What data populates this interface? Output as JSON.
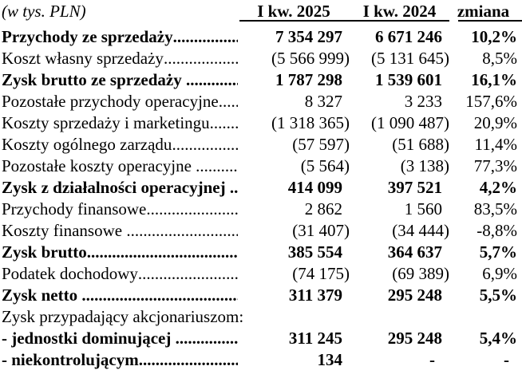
{
  "page": {
    "background": "#ffffff",
    "text_color": "#000000",
    "rule_color": "#000000"
  },
  "table": {
    "unit_label": "(w tys. PLN)",
    "columns": [
      "I kw. 2025",
      "I kw. 2024",
      "zmiana"
    ],
    "rows": [
      {
        "label": "Przychody ze sprzedaży",
        "bold": true,
        "dots": true,
        "v2025": "7 354 297",
        "v2024": "6 671 246",
        "change": "10,2%"
      },
      {
        "label": "Koszt własny sprzedaży",
        "bold": false,
        "dots": true,
        "v2025": "(5 566 999)",
        "v2024": "(5 131 645)",
        "change": "8,5%"
      },
      {
        "label": "Zysk brutto ze sprzedaży ",
        "bold": true,
        "dots": true,
        "v2025": "1 787 298",
        "v2024": "1 539 601",
        "change": "16,1%"
      },
      {
        "label": "Pozostałe przychody operacyjne",
        "bold": false,
        "dots": true,
        "v2025": "8 327",
        "v2024": "3 233",
        "change": "157,6%"
      },
      {
        "label": "Koszty sprzedaży i marketingu",
        "bold": false,
        "dots": true,
        "v2025": "(1 318 365)",
        "v2024": "(1 090 487)",
        "change": "20,9%"
      },
      {
        "label": "Koszty ogólnego zarządu",
        "bold": false,
        "dots": true,
        "v2025": "(57 597)",
        "v2024": "(51 688)",
        "change": "11,4%"
      },
      {
        "label": "Pozostałe koszty operacyjne ",
        "bold": false,
        "dots": true,
        "v2025": "(5 564)",
        "v2024": "(3 138)",
        "change": "77,3%"
      },
      {
        "label": "Zysk z działalności operacyjnej ",
        "bold": true,
        "dots": true,
        "v2025": "414 099",
        "v2024": "397 521",
        "change": "4,2%"
      },
      {
        "label": "Przychody finansowe",
        "bold": false,
        "dots": true,
        "v2025": "2 862",
        "v2024": "1 560",
        "change": "83,5%"
      },
      {
        "label": "Koszty finansowe ",
        "bold": false,
        "dots": true,
        "v2025": "(31 407)",
        "v2024": "(34 444)",
        "change": "-8,8%"
      },
      {
        "label": "Zysk brutto",
        "bold": true,
        "dots": true,
        "v2025": "385 554",
        "v2024": "364 637",
        "change": "5,7%"
      },
      {
        "label": "Podatek dochodowy",
        "bold": false,
        "dots": true,
        "v2025": "(74 175)",
        "v2024": "(69 389)",
        "change": "6,9%"
      },
      {
        "label": "Zysk netto ",
        "bold": true,
        "dots": true,
        "v2025": "311 379",
        "v2024": "295 248",
        "change": "5,5%"
      },
      {
        "label": "Zysk przypadający akcjonariuszom:",
        "bold": false,
        "dots": false,
        "v2025": "",
        "v2024": "",
        "change": ""
      },
      {
        "label": "- jednostki dominującej ",
        "bold": true,
        "dots": true,
        "v2025": "311 245",
        "v2024": "295 248",
        "change": "5,4%"
      },
      {
        "label": "- niekontrolującym",
        "bold": true,
        "dots": true,
        "v2025": "134",
        "v2024": "-",
        "change": "-"
      }
    ]
  }
}
